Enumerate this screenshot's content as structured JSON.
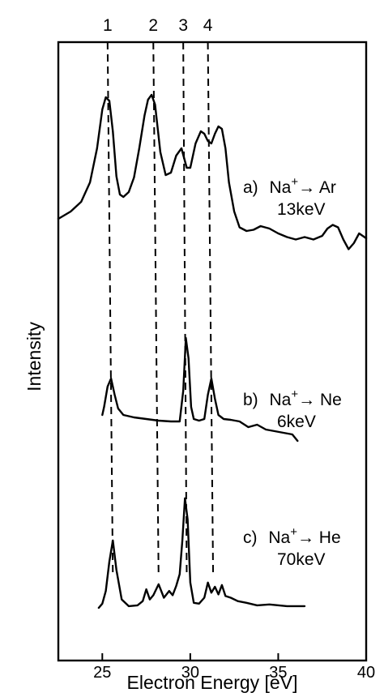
{
  "chart_data": {
    "type": "line",
    "xlabel": "Electron Energy [eV]",
    "ylabel": "Intensity",
    "xlim": [
      22.5,
      40
    ],
    "x_ticks": [
      25,
      30,
      35,
      40
    ],
    "y_ticks": false,
    "grid": false,
    "guide_lines": [
      {
        "label": "1",
        "x_top": 25.3,
        "x_bottom": 25.6
      },
      {
        "label": "2",
        "x_top": 27.9,
        "x_bottom": 28.2
      },
      {
        "label": "3",
        "x_top": 29.6,
        "x_bottom": 29.8
      },
      {
        "label": "4",
        "x_top": 31.0,
        "x_bottom": 31.3
      }
    ],
    "series": [
      {
        "label_prefix": "a)",
        "label_ion": "Na",
        "label_charge": "+",
        "label_arrow": "→",
        "label_target": "Ar",
        "label_energy": "13keV",
        "x": [
          22.5,
          23.2,
          23.8,
          24.3,
          24.7,
          25.0,
          25.2,
          25.4,
          25.6,
          25.8,
          26.0,
          26.2,
          26.5,
          26.8,
          27.1,
          27.4,
          27.6,
          27.8,
          28.0,
          28.3,
          28.6,
          28.9,
          29.2,
          29.5,
          29.8,
          30.0,
          30.3,
          30.6,
          30.8,
          31.0,
          31.2,
          31.4,
          31.6,
          31.8,
          32.0,
          32.2,
          32.5,
          32.8,
          33.2,
          33.6,
          34.0,
          34.5,
          35.0,
          35.5,
          36.0,
          36.5,
          37.0,
          37.5,
          37.8,
          38.1,
          38.4,
          38.7,
          39.0,
          39.3,
          39.6,
          40.0
        ],
        "y": [
          0.0,
          0.06,
          0.14,
          0.3,
          0.58,
          0.9,
          1.0,
          0.97,
          0.72,
          0.35,
          0.2,
          0.18,
          0.22,
          0.34,
          0.58,
          0.85,
          0.98,
          1.02,
          0.94,
          0.55,
          0.36,
          0.38,
          0.52,
          0.58,
          0.42,
          0.42,
          0.62,
          0.72,
          0.7,
          0.64,
          0.62,
          0.7,
          0.76,
          0.74,
          0.58,
          0.3,
          0.06,
          -0.07,
          -0.1,
          -0.09,
          -0.06,
          -0.08,
          -0.12,
          -0.15,
          -0.17,
          -0.15,
          -0.17,
          -0.14,
          -0.08,
          -0.05,
          -0.07,
          -0.17,
          -0.25,
          -0.2,
          -0.12,
          -0.16
        ]
      },
      {
        "label_prefix": "b)",
        "label_ion": "Na",
        "label_charge": "+",
        "label_arrow": "→",
        "label_target": "Ne",
        "label_energy": "6keV",
        "x": [
          25.0,
          25.1,
          25.3,
          25.5,
          25.7,
          25.9,
          26.2,
          26.8,
          27.5,
          28.2,
          28.9,
          29.4,
          29.6,
          29.75,
          29.9,
          30.05,
          30.2,
          30.5,
          30.8,
          31.0,
          31.2,
          31.4,
          31.6,
          31.9,
          32.3,
          32.8,
          33.3,
          33.8,
          34.3,
          34.8,
          35.3,
          35.8,
          36.1
        ],
        "y": [
          0.1,
          0.2,
          0.45,
          0.55,
          0.35,
          0.18,
          0.1,
          0.07,
          0.05,
          0.03,
          0.02,
          0.02,
          0.4,
          1.05,
          0.8,
          0.2,
          0.05,
          0.03,
          0.05,
          0.35,
          0.55,
          0.3,
          0.1,
          0.05,
          0.04,
          0.02,
          -0.05,
          -0.02,
          -0.08,
          -0.1,
          -0.12,
          -0.14,
          -0.22
        ]
      },
      {
        "label_prefix": "c)",
        "label_ion": "Na",
        "label_charge": "+",
        "label_arrow": "→",
        "label_target": "He",
        "label_energy": "70keV",
        "x": [
          24.8,
          25.0,
          25.2,
          25.4,
          25.6,
          25.8,
          26.1,
          26.5,
          27.0,
          27.3,
          27.5,
          27.7,
          27.9,
          28.2,
          28.5,
          28.8,
          29.0,
          29.2,
          29.4,
          29.55,
          29.7,
          29.85,
          30.0,
          30.2,
          30.5,
          30.8,
          31.0,
          31.2,
          31.4,
          31.6,
          31.8,
          32.0,
          32.3,
          32.7,
          33.2,
          33.8,
          34.5,
          35.5,
          36.5
        ],
        "y": [
          0.0,
          0.05,
          0.2,
          0.55,
          0.8,
          0.45,
          0.1,
          0.02,
          0.03,
          0.08,
          0.22,
          0.1,
          0.15,
          0.28,
          0.12,
          0.2,
          0.15,
          0.26,
          0.4,
          0.8,
          1.3,
          1.05,
          0.3,
          0.06,
          0.05,
          0.12,
          0.3,
          0.18,
          0.25,
          0.16,
          0.27,
          0.14,
          0.12,
          0.08,
          0.06,
          0.03,
          0.04,
          0.02,
          0.02
        ]
      }
    ]
  }
}
